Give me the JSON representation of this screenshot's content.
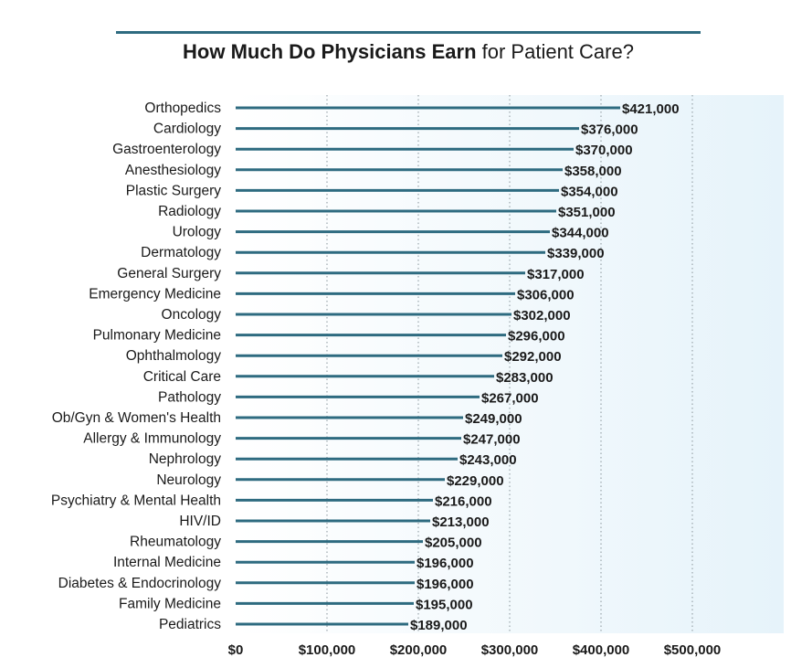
{
  "chart_data": {
    "type": "bar",
    "orientation": "horizontal",
    "title_bold": "How Much Do Physicians Earn",
    "title_rest": " for Patient Care?",
    "categories": [
      "Orthopedics",
      "Cardiology",
      "Gastroenterology",
      "Anesthesiology",
      "Plastic Surgery",
      "Radiology",
      "Urology",
      "Dermatology",
      "General Surgery",
      "Emergency Medicine",
      "Oncology",
      "Pulmonary Medicine",
      "Ophthalmology",
      "Critical Care",
      "Pathology",
      "Ob/Gyn & Women's Health",
      "Allergy & Immunology",
      "Nephrology",
      "Neurology",
      "Psychiatry & Mental Health",
      "HIV/ID",
      "Rheumatology",
      "Internal Medicine",
      "Diabetes & Endocrinology",
      "Family Medicine",
      "Pediatrics"
    ],
    "values": [
      421000,
      376000,
      370000,
      358000,
      354000,
      351000,
      344000,
      339000,
      317000,
      306000,
      302000,
      296000,
      292000,
      283000,
      267000,
      249000,
      247000,
      243000,
      229000,
      216000,
      213000,
      205000,
      196000,
      196000,
      195000,
      189000
    ],
    "value_labels": [
      "$421,000",
      "$376,000",
      "$370,000",
      "$358,000",
      "$354,000",
      "$351,000",
      "$344,000",
      "$339,000",
      "$317,000",
      "$306,000",
      "$302,000",
      "$296,000",
      "$292,000",
      "$283,000",
      "$267,000",
      "$249,000",
      "$247,000",
      "$243,000",
      "$229,000",
      "$216,000",
      "$213,000",
      "$205,000",
      "$196,000",
      "$196,000",
      "$195,000",
      "$189,000"
    ],
    "xticks": [
      0,
      100000,
      200000,
      300000,
      400000,
      500000
    ],
    "xtick_labels": [
      "$0",
      "$100,000",
      "$200,000",
      "$300,000",
      "$400,000",
      "$500,000"
    ],
    "xlim": [
      0,
      600000
    ],
    "grid": "vertical-dotted",
    "colors": {
      "bar": "#2e6b80",
      "plot_bg_left": "#ffffff",
      "plot_bg_right": "#e6f3fa",
      "gridline": "#9aa5ab",
      "title_rule": "#2e6b80"
    }
  }
}
